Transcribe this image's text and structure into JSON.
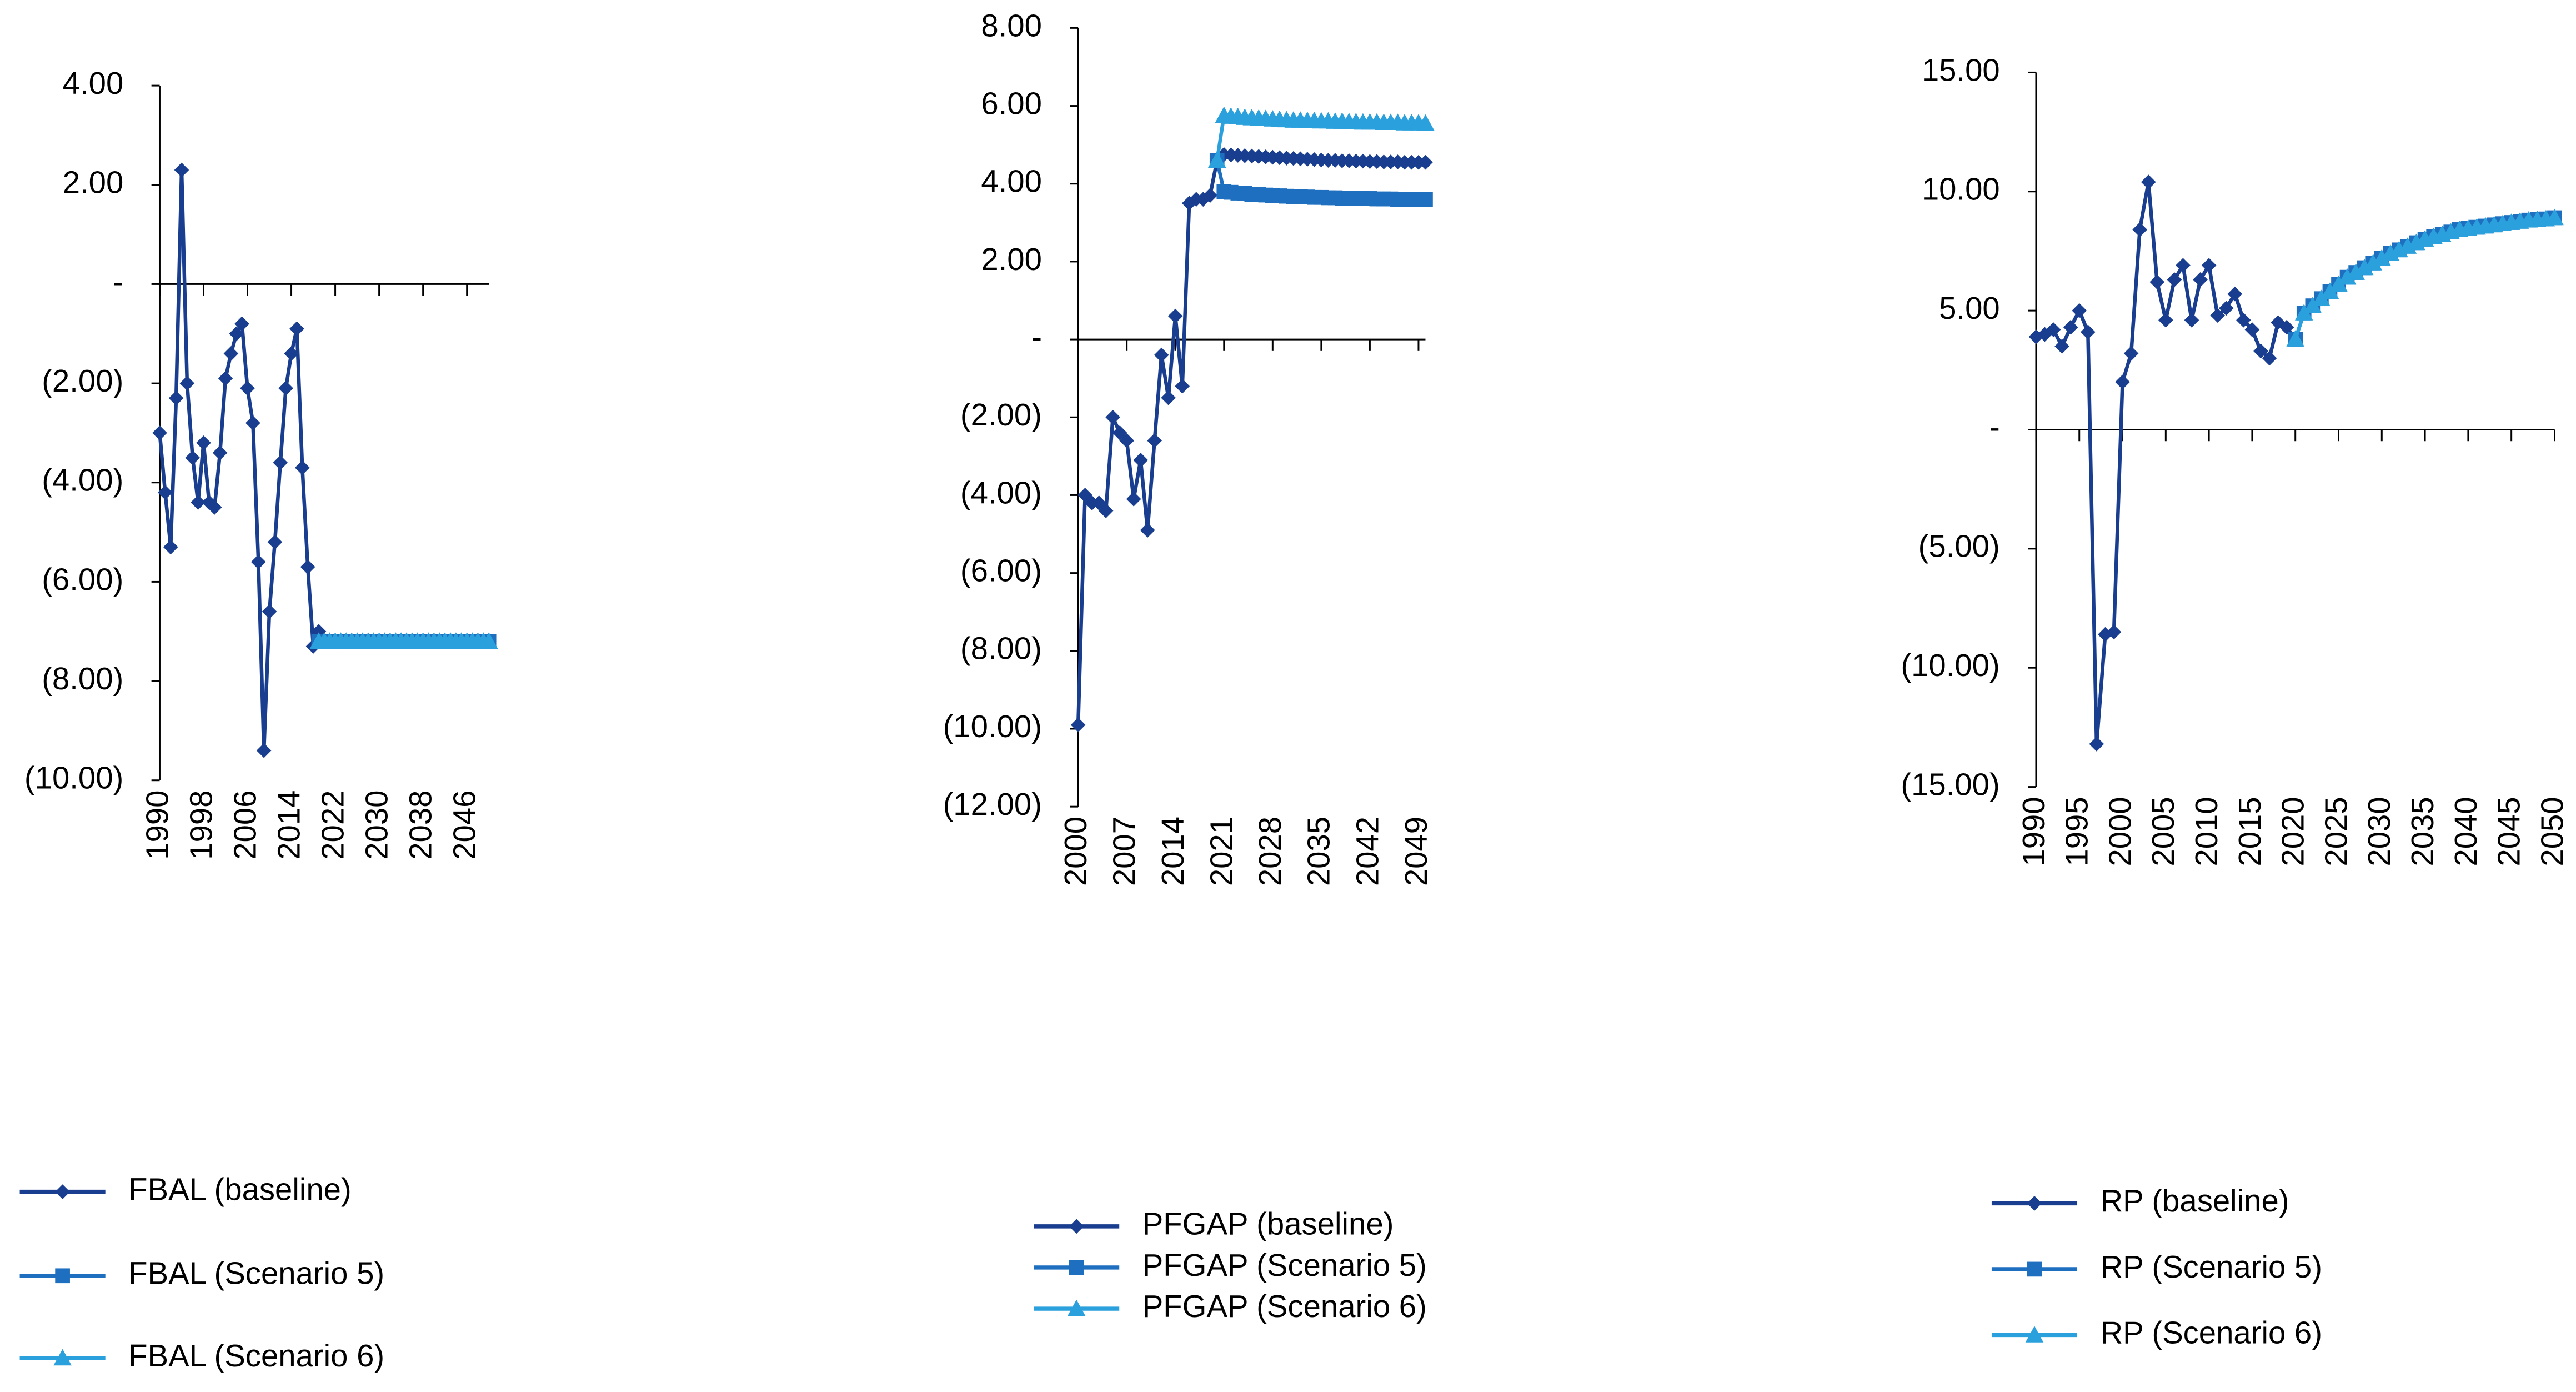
{
  "chart_data": [
    {
      "type": "line",
      "xlim": [
        1990,
        2050
      ],
      "ylim": [
        -10,
        4
      ],
      "xticks": [
        1990,
        1998,
        2006,
        2014,
        2022,
        2030,
        2038,
        2046
      ],
      "yticks": [
        {
          "value": 4,
          "label": "4.00"
        },
        {
          "value": 2,
          "label": "2.00"
        },
        {
          "value": 0,
          "label": "-"
        },
        {
          "value": -2,
          "label": "(2.00)"
        },
        {
          "value": -4,
          "label": "(4.00)"
        },
        {
          "value": -6,
          "label": "(6.00)"
        },
        {
          "value": -8,
          "label": "(8.00)"
        },
        {
          "value": -10,
          "label": "(10.00)"
        }
      ],
      "x": [
        1990,
        1991,
        1992,
        1993,
        1994,
        1995,
        1996,
        1997,
        1998,
        1999,
        2000,
        2001,
        2002,
        2003,
        2004,
        2005,
        2006,
        2007,
        2008,
        2009,
        2010,
        2011,
        2012,
        2013,
        2014,
        2015,
        2016,
        2017,
        2018,
        2019,
        2020,
        2021,
        2022,
        2023,
        2024,
        2025,
        2026,
        2027,
        2028,
        2029,
        2030,
        2031,
        2032,
        2033,
        2034,
        2035,
        2036,
        2037,
        2038,
        2039,
        2040,
        2041,
        2042,
        2043,
        2044,
        2045,
        2046,
        2047,
        2048,
        2049,
        2050
      ],
      "legend": "bottom",
      "series": [
        {
          "name": "FBAL (baseline)",
          "color": "#1a3e8f",
          "marker": "diamond",
          "values": [
            -3.0,
            -4.2,
            -5.3,
            -2.3,
            2.3,
            -2.0,
            -3.5,
            -4.4,
            -3.2,
            -4.4,
            -4.5,
            -3.4,
            -1.9,
            -1.4,
            -1.0,
            -0.8,
            -2.1,
            -2.8,
            -5.6,
            -9.4,
            -6.6,
            -5.2,
            -3.6,
            -2.1,
            -1.4,
            -0.9,
            -3.7,
            -5.7,
            -7.3,
            -7.0,
            null,
            null,
            null,
            null,
            null,
            null,
            null,
            null,
            null,
            null,
            null,
            null,
            null,
            null,
            null,
            null,
            null,
            null,
            null,
            null,
            null,
            null,
            null,
            null,
            null,
            null,
            null,
            null,
            null,
            null,
            null
          ]
        },
        {
          "name": "FBAL (Scenario 5)",
          "color": "#1f6fc0",
          "marker": "square",
          "values": [
            null,
            null,
            null,
            null,
            null,
            null,
            null,
            null,
            null,
            null,
            null,
            null,
            null,
            null,
            null,
            null,
            null,
            null,
            null,
            null,
            null,
            null,
            null,
            null,
            null,
            null,
            null,
            null,
            null,
            -7.2,
            -7.2,
            -7.2,
            -7.2,
            -7.2,
            -7.2,
            -7.2,
            -7.2,
            -7.2,
            -7.2,
            -7.2,
            -7.2,
            -7.2,
            -7.2,
            -7.2,
            -7.2,
            -7.2,
            -7.2,
            -7.2,
            -7.2,
            -7.2,
            -7.2,
            -7.2,
            -7.2,
            -7.2,
            -7.2,
            -7.2,
            -7.2,
            -7.2,
            -7.2,
            -7.2,
            -7.2
          ]
        },
        {
          "name": "FBAL (Scenario 6)",
          "color": "#2aa0dc",
          "marker": "triangle",
          "values": [
            null,
            null,
            null,
            null,
            null,
            null,
            null,
            null,
            null,
            null,
            null,
            null,
            null,
            null,
            null,
            null,
            null,
            null,
            null,
            null,
            null,
            null,
            null,
            null,
            null,
            null,
            null,
            null,
            null,
            -7.2,
            -7.2,
            -7.2,
            -7.2,
            -7.2,
            -7.2,
            -7.2,
            -7.2,
            -7.2,
            -7.2,
            -7.2,
            -7.2,
            -7.2,
            -7.2,
            -7.2,
            -7.2,
            -7.2,
            -7.2,
            -7.2,
            -7.2,
            -7.2,
            -7.2,
            -7.2,
            -7.2,
            -7.2,
            -7.2,
            -7.2,
            -7.2,
            -7.2,
            -7.2,
            -7.2,
            -7.2
          ]
        }
      ]
    },
    {
      "type": "line",
      "xlim": [
        2000,
        2050
      ],
      "ylim": [
        -12,
        8
      ],
      "xticks": [
        2000,
        2007,
        2014,
        2021,
        2028,
        2035,
        2042,
        2049
      ],
      "yticks": [
        {
          "value": 8,
          "label": "8.00"
        },
        {
          "value": 6,
          "label": "6.00"
        },
        {
          "value": 4,
          "label": "4.00"
        },
        {
          "value": 2,
          "label": "2.00"
        },
        {
          "value": 0,
          "label": "-"
        },
        {
          "value": -2,
          "label": "(2.00)"
        },
        {
          "value": -4,
          "label": "(4.00)"
        },
        {
          "value": -6,
          "label": "(6.00)"
        },
        {
          "value": -8,
          "label": "(8.00)"
        },
        {
          "value": -10,
          "label": "(10.00)"
        },
        {
          "value": -12,
          "label": "(12.00)"
        }
      ],
      "x": [
        2000,
        2001,
        2002,
        2003,
        2004,
        2005,
        2006,
        2007,
        2008,
        2009,
        2010,
        2011,
        2012,
        2013,
        2014,
        2015,
        2016,
        2017,
        2018,
        2019,
        2020,
        2021,
        2022,
        2023,
        2024,
        2025,
        2026,
        2027,
        2028,
        2029,
        2030,
        2031,
        2032,
        2033,
        2034,
        2035,
        2036,
        2037,
        2038,
        2039,
        2040,
        2041,
        2042,
        2043,
        2044,
        2045,
        2046,
        2047,
        2048,
        2049,
        2050
      ],
      "legend": "bottom",
      "series": [
        {
          "name": "PFGAP (baseline)",
          "color": "#1a3e8f",
          "marker": "diamond",
          "values": [
            -9.9,
            -4.0,
            -4.2,
            -4.2,
            -4.4,
            -2.0,
            -2.4,
            -2.6,
            -4.1,
            -3.1,
            -4.9,
            -2.6,
            -0.4,
            -1.5,
            0.6,
            -1.2,
            3.5,
            3.6,
            3.6,
            3.7,
            4.6,
            4.75,
            4.74,
            4.73,
            4.72,
            4.71,
            4.7,
            4.69,
            4.68,
            4.67,
            4.66,
            4.65,
            4.64,
            4.63,
            4.62,
            4.61,
            4.6,
            4.6,
            4.59,
            4.59,
            4.58,
            4.58,
            4.57,
            4.57,
            4.56,
            4.56,
            4.56,
            4.55,
            4.55,
            4.55,
            4.55
          ]
        },
        {
          "name": "PFGAP (Scenario 5)",
          "color": "#1f6fc0",
          "marker": "square",
          "values": [
            null,
            null,
            null,
            null,
            null,
            null,
            null,
            null,
            null,
            null,
            null,
            null,
            null,
            null,
            null,
            null,
            null,
            null,
            null,
            null,
            4.6,
            3.8,
            3.78,
            3.76,
            3.75,
            3.73,
            3.72,
            3.71,
            3.7,
            3.69,
            3.68,
            3.67,
            3.67,
            3.66,
            3.65,
            3.65,
            3.64,
            3.64,
            3.63,
            3.63,
            3.62,
            3.62,
            3.62,
            3.61,
            3.61,
            3.61,
            3.6,
            3.6,
            3.6,
            3.6,
            3.6
          ]
        },
        {
          "name": "PFGAP (Scenario 6)",
          "color": "#2aa0dc",
          "marker": "triangle",
          "values": [
            null,
            null,
            null,
            null,
            null,
            null,
            null,
            null,
            null,
            null,
            null,
            null,
            null,
            null,
            null,
            null,
            null,
            null,
            null,
            null,
            4.6,
            5.75,
            5.73,
            5.72,
            5.7,
            5.69,
            5.68,
            5.67,
            5.66,
            5.65,
            5.64,
            5.63,
            5.63,
            5.62,
            5.62,
            5.61,
            5.61,
            5.6,
            5.6,
            5.59,
            5.59,
            5.58,
            5.58,
            5.58,
            5.57,
            5.57,
            5.57,
            5.56,
            5.56,
            5.56,
            5.55
          ]
        }
      ]
    },
    {
      "type": "line",
      "xlim": [
        1990,
        2050
      ],
      "ylim": [
        -15,
        15
      ],
      "xticks": [
        1990,
        1995,
        2000,
        2005,
        2010,
        2015,
        2020,
        2025,
        2030,
        2035,
        2040,
        2045,
        2050
      ],
      "yticks": [
        {
          "value": 15,
          "label": "15.00"
        },
        {
          "value": 10,
          "label": "10.00"
        },
        {
          "value": 5,
          "label": "5.00"
        },
        {
          "value": 0,
          "label": "-"
        },
        {
          "value": -5,
          "label": "(5.00)"
        },
        {
          "value": -10,
          "label": "(10.00)"
        },
        {
          "value": -15,
          "label": "(15.00)"
        }
      ],
      "x": [
        1990,
        1991,
        1992,
        1993,
        1994,
        1995,
        1996,
        1997,
        1998,
        1999,
        2000,
        2001,
        2002,
        2003,
        2004,
        2005,
        2006,
        2007,
        2008,
        2009,
        2010,
        2011,
        2012,
        2013,
        2014,
        2015,
        2016,
        2017,
        2018,
        2019,
        2020,
        2021,
        2022,
        2023,
        2024,
        2025,
        2026,
        2027,
        2028,
        2029,
        2030,
        2031,
        2032,
        2033,
        2034,
        2035,
        2036,
        2037,
        2038,
        2039,
        2040,
        2041,
        2042,
        2043,
        2044,
        2045,
        2046,
        2047,
        2048,
        2049,
        2050
      ],
      "legend": "bottom",
      "series": [
        {
          "name": "RP (baseline)",
          "color": "#1a3e8f",
          "marker": "diamond",
          "values": [
            3.9,
            4.0,
            4.2,
            3.5,
            4.3,
            5.0,
            4.1,
            -13.2,
            -8.6,
            -8.5,
            2.0,
            3.2,
            8.4,
            10.4,
            6.2,
            4.6,
            6.3,
            6.9,
            4.6,
            6.3,
            6.9,
            4.8,
            5.1,
            5.7,
            4.6,
            4.2,
            3.3,
            3.0,
            4.5,
            4.3,
            3.8,
            null,
            null,
            null,
            null,
            null,
            null,
            null,
            null,
            null,
            null,
            null,
            null,
            null,
            null,
            null,
            null,
            null,
            null,
            null,
            null,
            null,
            null,
            null,
            null,
            null,
            null,
            null,
            null,
            null,
            null
          ]
        },
        {
          "name": "RP (Scenario 5)",
          "color": "#1f6fc0",
          "marker": "square",
          "values": [
            null,
            null,
            null,
            null,
            null,
            null,
            null,
            null,
            null,
            null,
            null,
            null,
            null,
            null,
            null,
            null,
            null,
            null,
            null,
            null,
            null,
            null,
            null,
            null,
            null,
            null,
            null,
            null,
            null,
            null,
            3.8,
            4.9,
            5.2,
            5.5,
            5.8,
            6.1,
            6.4,
            6.6,
            6.8,
            7.0,
            7.2,
            7.4,
            7.55,
            7.7,
            7.85,
            8.0,
            8.1,
            8.2,
            8.3,
            8.4,
            8.45,
            8.5,
            8.55,
            8.6,
            8.65,
            8.7,
            8.75,
            8.8,
            8.82,
            8.85,
            8.9
          ]
        },
        {
          "name": "RP (Scenario 6)",
          "color": "#2aa0dc",
          "marker": "triangle",
          "values": [
            null,
            null,
            null,
            null,
            null,
            null,
            null,
            null,
            null,
            null,
            null,
            null,
            null,
            null,
            null,
            null,
            null,
            null,
            null,
            null,
            null,
            null,
            null,
            null,
            null,
            null,
            null,
            null,
            null,
            null,
            3.8,
            4.9,
            5.2,
            5.5,
            5.8,
            6.1,
            6.4,
            6.6,
            6.8,
            7.0,
            7.2,
            7.4,
            7.55,
            7.7,
            7.85,
            8.0,
            8.1,
            8.2,
            8.3,
            8.4,
            8.45,
            8.5,
            8.55,
            8.6,
            8.65,
            8.7,
            8.75,
            8.8,
            8.82,
            8.85,
            8.9
          ]
        }
      ]
    }
  ]
}
